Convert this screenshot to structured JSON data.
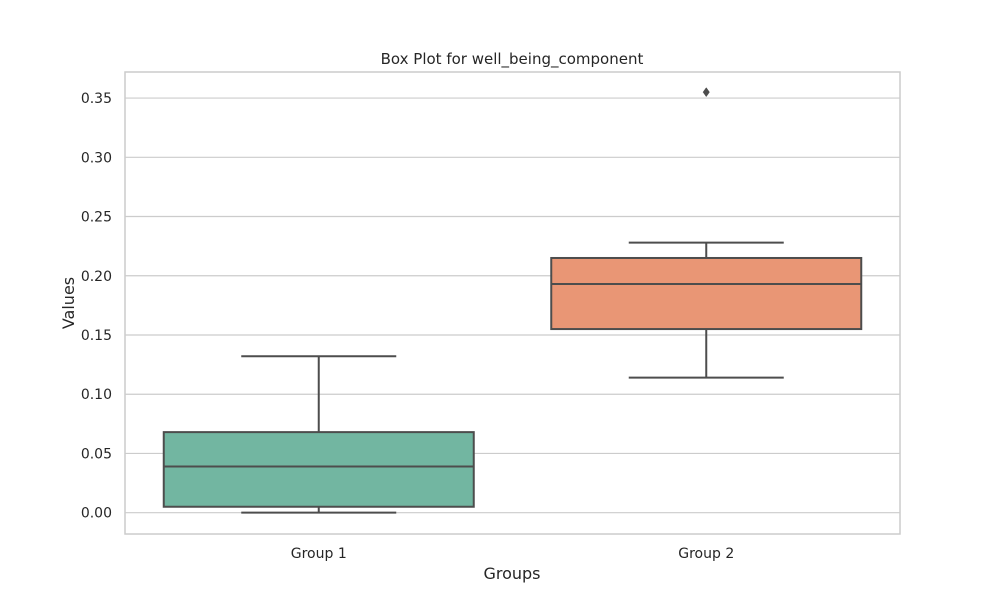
{
  "chart_data": {
    "type": "box",
    "title": "Box Plot for well_being_component",
    "xlabel": "Groups",
    "ylabel": "Values",
    "ylim": [
      -0.018,
      0.372
    ],
    "yticks": [
      0.0,
      0.05,
      0.1,
      0.15,
      0.2,
      0.25,
      0.3,
      0.35
    ],
    "ytick_labels": [
      "0.00",
      "0.05",
      "0.10",
      "0.15",
      "0.20",
      "0.25",
      "0.30",
      "0.35"
    ],
    "grid": "horizontal",
    "categories": [
      "Group 1",
      "Group 2"
    ],
    "boxes": [
      {
        "category": "Group 1",
        "whisker_low": 0.0,
        "q1": 0.005,
        "median": 0.039,
        "q3": 0.068,
        "whisker_high": 0.132,
        "outliers": [],
        "color": "#72b6a1"
      },
      {
        "category": "Group 2",
        "whisker_low": 0.114,
        "q1": 0.155,
        "median": 0.193,
        "q3": 0.215,
        "whisker_high": 0.228,
        "outliers": [
          0.355
        ],
        "color": "#e99675"
      }
    ],
    "colors": {
      "edge": "#4d4d4d",
      "grid": "#cccccc",
      "frame": "#cccccc"
    }
  }
}
